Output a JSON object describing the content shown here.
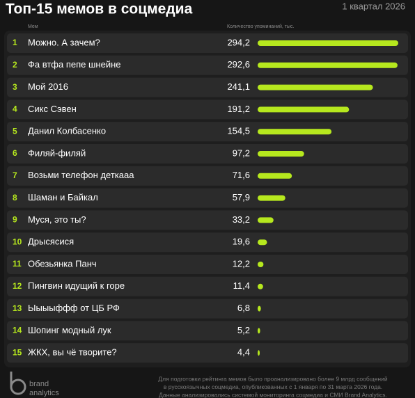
{
  "chart_data": {
    "type": "bar",
    "title": "Топ-15 мемов в соцмедиа",
    "subtitle": "1 квартал 2026",
    "category_header": "Мем",
    "value_header": "Количество упоминаний, тыс.",
    "ranks": [
      1,
      2,
      3,
      4,
      5,
      6,
      7,
      8,
      9,
      10,
      11,
      12,
      13,
      14,
      15
    ],
    "categories": [
      "Можно. А зачем?",
      "Фа втфа пепе шнейне",
      "Мой 2016",
      "Сикс Сэвен",
      "Данил Колбасенко",
      "Филяй-филяй",
      "Возьми телефон деткааа",
      "Шаман и Байкал",
      "Муся, это ты?",
      "Дрысясися",
      "Обезьянка Панч",
      "Пингвин идущий к горе",
      "Ыыыыффф от ЦБ РФ",
      "Шопинг модный лук",
      "ЖКХ, вы чё творите?"
    ],
    "values": [
      294.2,
      292.6,
      241.1,
      191.2,
      154.5,
      97.2,
      71.6,
      57.9,
      33.2,
      19.6,
      12.2,
      11.4,
      6.8,
      5.2,
      4.4
    ],
    "value_labels": [
      "294,2",
      "292,6",
      "241,1",
      "191,2",
      "154,5",
      "97,2",
      "71,6",
      "57,9",
      "33,2",
      "19,6",
      "12,2",
      "11,4",
      "6,8",
      "5,2",
      "4,4"
    ],
    "color": "#b6e81e",
    "footnote": [
      "Для подготовки рейтинга мемов было проанализировано более 9 млрд сообщений",
      "в русскоязычных соцмедиа, опубликованных с 1 января по 31 марта 2026 года.",
      "Данные анализировались системой мониторинга соцмедиа и СМИ Brand Analytics."
    ],
    "logo": [
      "brand",
      "analytics"
    ]
  }
}
